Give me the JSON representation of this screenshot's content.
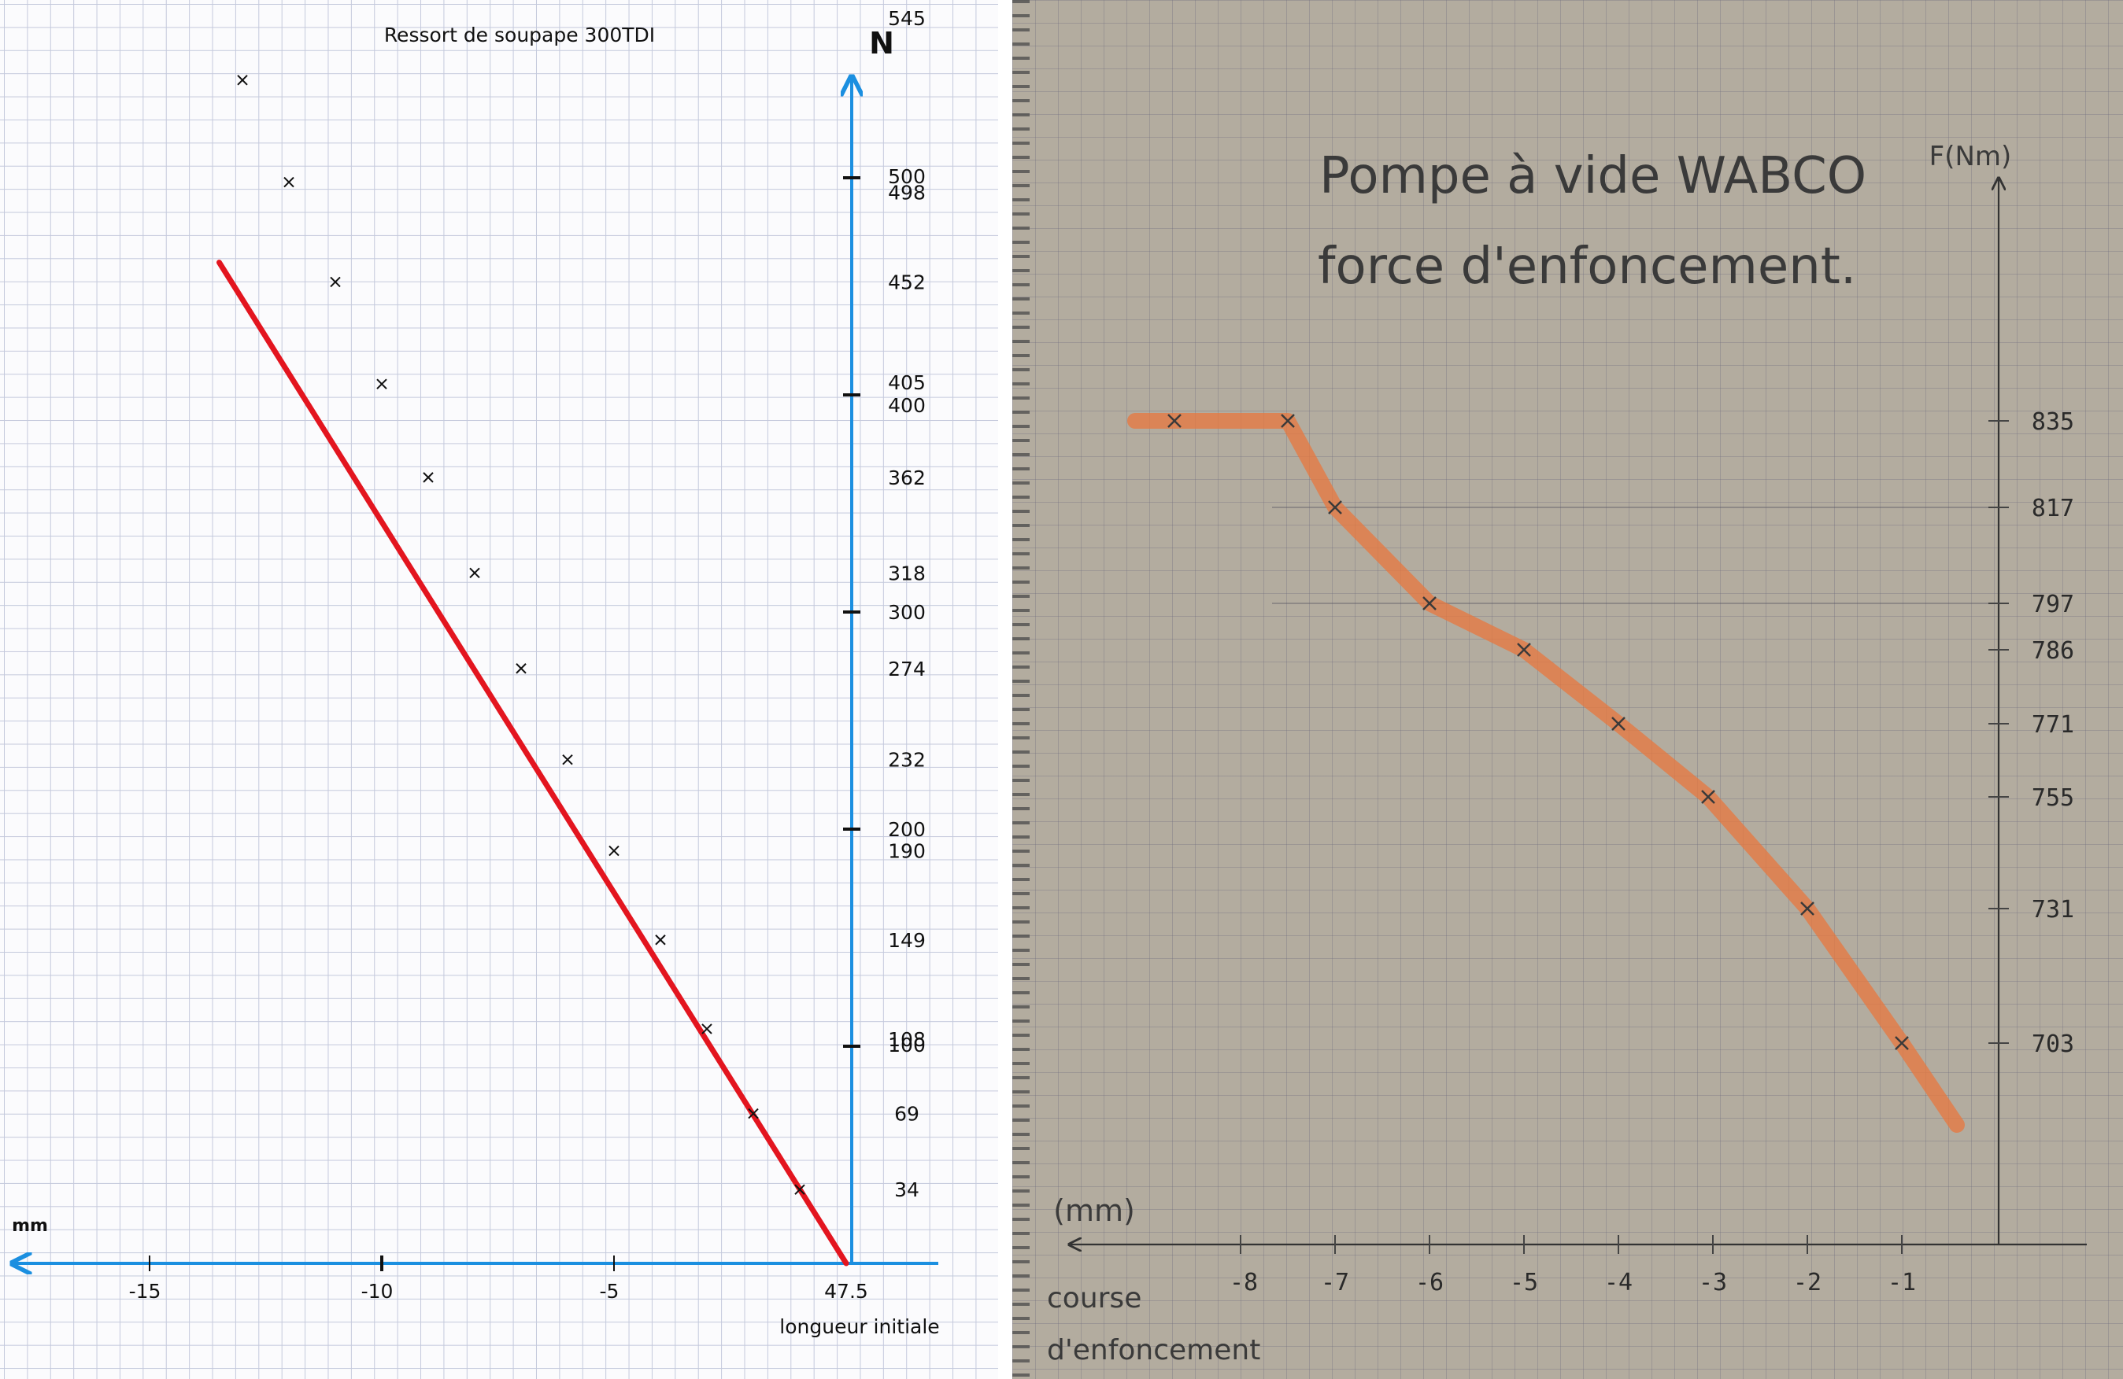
{
  "chart_data": [
    {
      "type": "line",
      "title": "Ressort de soupape 300TDI",
      "xlabel": "mm",
      "ylabel": "N",
      "origin_label": "47.5",
      "origin_caption": "longueur initiale",
      "x_ticks": [
        -15,
        -10,
        -5
      ],
      "x_tick_labels": [
        "-15",
        "-10",
        "-5"
      ],
      "y_ticks": [
        100,
        200,
        300,
        400,
        500
      ],
      "xlim": [
        -18,
        2
      ],
      "ylim": [
        0,
        545
      ],
      "grid": true,
      "color": "#e3151f",
      "axis_color": "#1b8fe0",
      "point_labels": [
        "34",
        "69",
        "100",
        "108",
        "149",
        "190",
        "200",
        "232",
        "274",
        "300",
        "318",
        "362",
        "400",
        "405",
        "452",
        "498",
        "500",
        "545"
      ],
      "series": [
        {
          "x": [
            -1,
            -2,
            -3,
            -4,
            -5,
            -6,
            -7,
            -8,
            -9,
            -10,
            -11,
            -12,
            -13
          ],
          "y": [
            34,
            69,
            108,
            149,
            190,
            232,
            274,
            318,
            362,
            405,
            452,
            498,
            545
          ]
        }
      ]
    },
    {
      "type": "line",
      "title": "Pompe à vide WABCO",
      "subtitle": "force d'enfoncement.",
      "ylabel": "F(Nm)",
      "xlabel": "(mm)",
      "xlabel_caption": [
        "course",
        "d'enfoncement"
      ],
      "x_ticks": [
        -8,
        -7,
        -6,
        -5,
        -4,
        -3,
        -2,
        -1
      ],
      "x_tick_labels": [
        "-8",
        "-7",
        "-6",
        "-5",
        "-4",
        "-3",
        "-2",
        "-1"
      ],
      "y_ticks": [
        703,
        731,
        755,
        771,
        786,
        797,
        817,
        835
      ],
      "y_tick_labels": [
        "703",
        "731",
        "755",
        "771",
        "786",
        "797",
        "817",
        "835"
      ],
      "xlim": [
        -8.6,
        0
      ],
      "grid": true,
      "color": "#e8773e",
      "series": [
        {
          "x": [
            -8,
            -7.5,
            -7,
            -6,
            -5,
            -4,
            -3.4,
            -2,
            -1
          ],
          "y": [
            835,
            835,
            817,
            797,
            786,
            771,
            755,
            731,
            703
          ]
        }
      ]
    }
  ]
}
